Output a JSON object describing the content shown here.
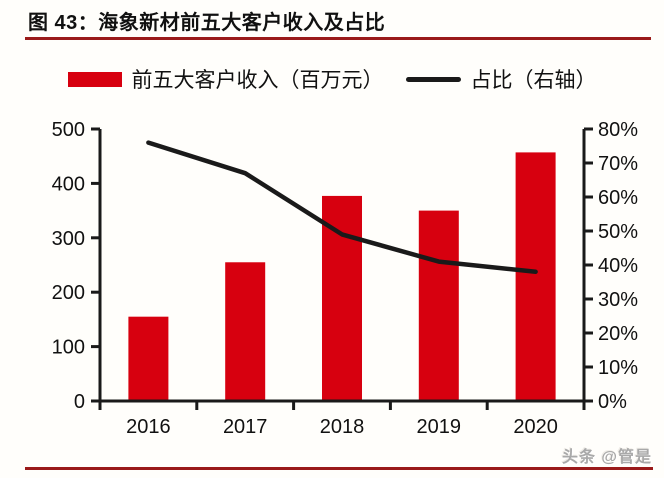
{
  "header": {
    "title": "图 43：海象新材前五大客户收入及占比"
  },
  "legend": {
    "bar_label": "前五大客户收入（百万元）",
    "line_label": "占比（右轴）"
  },
  "watermark": "头条 @管是",
  "colors": {
    "bar": "#d7000f",
    "line": "#1a1a1a",
    "axis": "#1a1a1a",
    "rule": "#9a1a1a",
    "background": "#fffefb"
  },
  "chart_data": {
    "type": "bar",
    "subtype": "bar+line combo, dual axis",
    "title": "海象新材前五大客户收入及占比",
    "categories": [
      "2016",
      "2017",
      "2018",
      "2019",
      "2020"
    ],
    "series": [
      {
        "name": "前五大客户收入（百万元）",
        "type": "bar",
        "axis": "left",
        "values": [
          155,
          255,
          377,
          350,
          457
        ]
      },
      {
        "name": "占比（右轴）",
        "type": "line",
        "axis": "right",
        "values": [
          76,
          67,
          49,
          41,
          38
        ]
      }
    ],
    "left_axis": {
      "min": 0,
      "max": 500,
      "step": 100,
      "ticks": [
        "0",
        "100",
        "200",
        "300",
        "400",
        "500"
      ]
    },
    "right_axis": {
      "min": 0,
      "max": 80,
      "step": 10,
      "ticks": [
        "0%",
        "10%",
        "20%",
        "30%",
        "40%",
        "50%",
        "60%",
        "70%",
        "80%"
      ]
    },
    "grid": false,
    "legend_position": "top"
  }
}
